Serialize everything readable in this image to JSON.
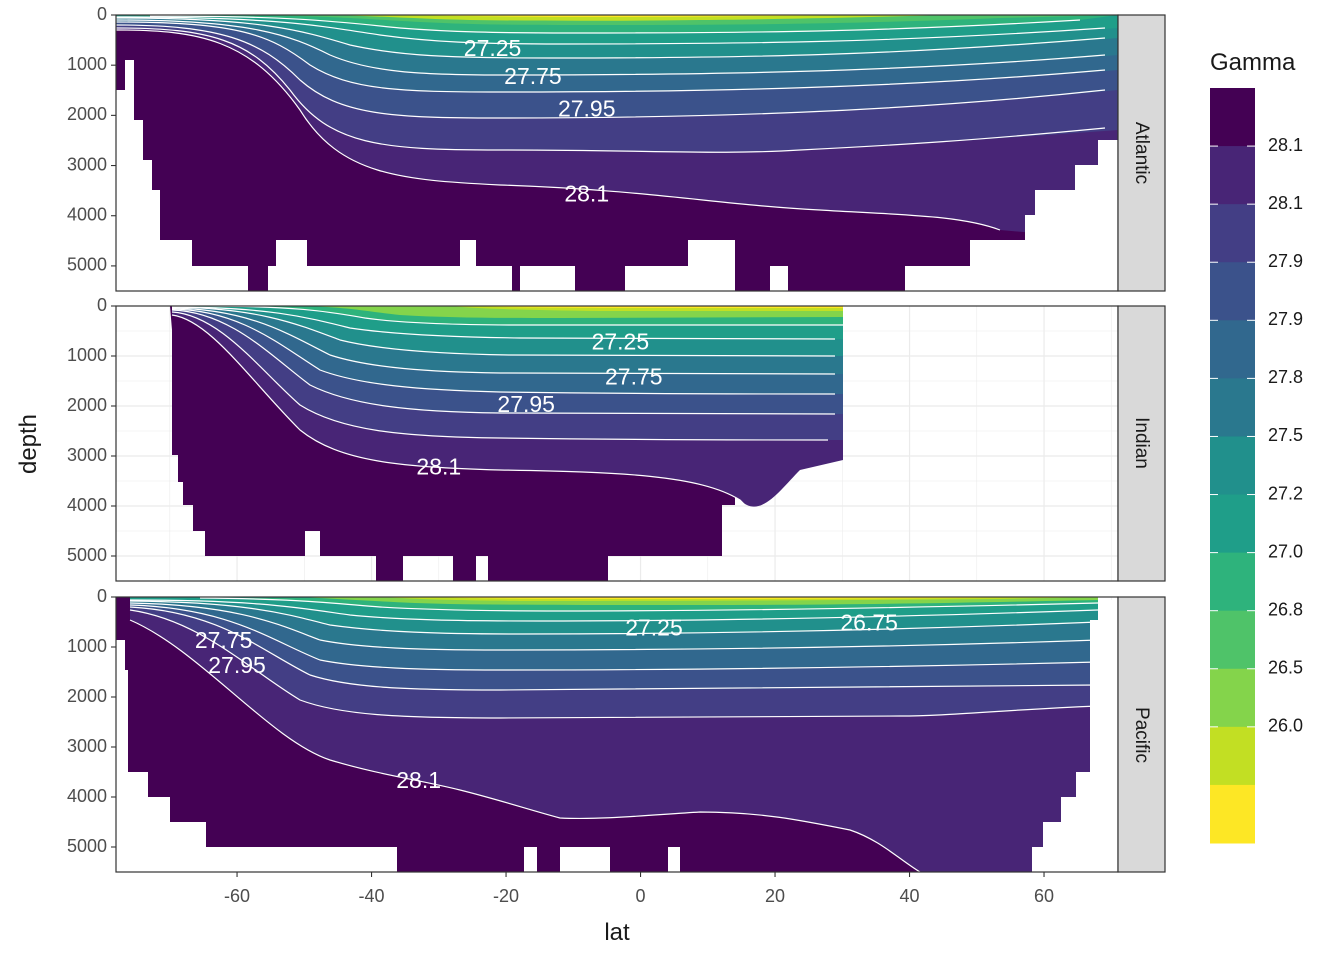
{
  "chart_data": {
    "type": "heatmap",
    "subtype": "filled-contour faceted ocean sections",
    "xlabel": "lat",
    "ylabel": "depth",
    "xlim": [
      -78,
      71
    ],
    "ylim": [
      5500,
      0
    ],
    "x_ticks": [
      -60,
      -40,
      -20,
      0,
      20,
      40,
      60
    ],
    "y_ticks": [
      0,
      1000,
      2000,
      3000,
      4000,
      5000
    ],
    "grid": true,
    "legend_position": "right",
    "facet_strip_position": "right",
    "legend": {
      "title": "Gamma",
      "bins": [
        "28.1",
        "28.1",
        "27.9",
        "27.9",
        "27.8",
        "27.5",
        "27.2",
        "27.0",
        "26.8",
        "26.5",
        "26.0"
      ],
      "colors": [
        "#440154",
        "#482576",
        "#433E85",
        "#3B528B",
        "#31688E",
        "#2A788E",
        "#21908C",
        "#1F9E89",
        "#2EB37C",
        "#4FC369",
        "#84D44B",
        "#C2DF23",
        "#FDE725"
      ]
    },
    "panels": [
      {
        "name": "Atlantic",
        "lat_range": [
          -77,
          64
        ],
        "contour_labels": [
          {
            "text": "27.25",
            "lat": -22,
            "depth": 700
          },
          {
            "text": "27.75",
            "lat": -16,
            "depth": 1250
          },
          {
            "text": "27.95",
            "lat": -8,
            "depth": 1900
          },
          {
            "text": "28.1",
            "lat": -8,
            "depth": 3600
          }
        ],
        "isopycnal_depths_at_mid_latitude": [
          {
            "gamma": 26.0,
            "depth": 100
          },
          {
            "gamma": 27.25,
            "depth": 700
          },
          {
            "gamma": 27.75,
            "depth": 1250
          },
          {
            "gamma": 27.95,
            "depth": 2050
          },
          {
            "gamma": 28.1,
            "depth": 3800
          }
        ]
      },
      {
        "name": "Indian",
        "lat_range": [
          -70,
          25
        ],
        "contour_labels": [
          {
            "text": "27.25",
            "lat": -3,
            "depth": 750
          },
          {
            "text": "27.75",
            "lat": -1,
            "depth": 1450
          },
          {
            "text": "27.95",
            "lat": -17,
            "depth": 2000
          },
          {
            "text": "28.1",
            "lat": -30,
            "depth": 3250
          }
        ],
        "isopycnal_depths_at_mid_latitude": [
          {
            "gamma": 26.0,
            "depth": 100
          },
          {
            "gamma": 27.25,
            "depth": 750
          },
          {
            "gamma": 27.75,
            "depth": 1450
          },
          {
            "gamma": 27.95,
            "depth": 2100
          },
          {
            "gamma": 28.1,
            "depth": 3500
          }
        ]
      },
      {
        "name": "Pacific",
        "lat_range": [
          -77,
          61
        ],
        "contour_labels": [
          {
            "text": "27.75",
            "lat": -62,
            "depth": 900
          },
          {
            "text": "27.95",
            "lat": -60,
            "depth": 1400
          },
          {
            "text": "27.25",
            "lat": 2,
            "depth": 650
          },
          {
            "text": "26.75",
            "lat": 34,
            "depth": 550
          },
          {
            "text": "28.1",
            "lat": -33,
            "depth": 3700
          }
        ],
        "isopycnal_depths_at_mid_latitude": [
          {
            "gamma": 26.0,
            "depth": 100
          },
          {
            "gamma": 26.75,
            "depth": 500
          },
          {
            "gamma": 27.25,
            "depth": 650
          },
          {
            "gamma": 27.75,
            "depth": 1300
          },
          {
            "gamma": 27.95,
            "depth": 2300
          },
          {
            "gamma": 28.1,
            "depth": 4200
          }
        ]
      }
    ]
  }
}
